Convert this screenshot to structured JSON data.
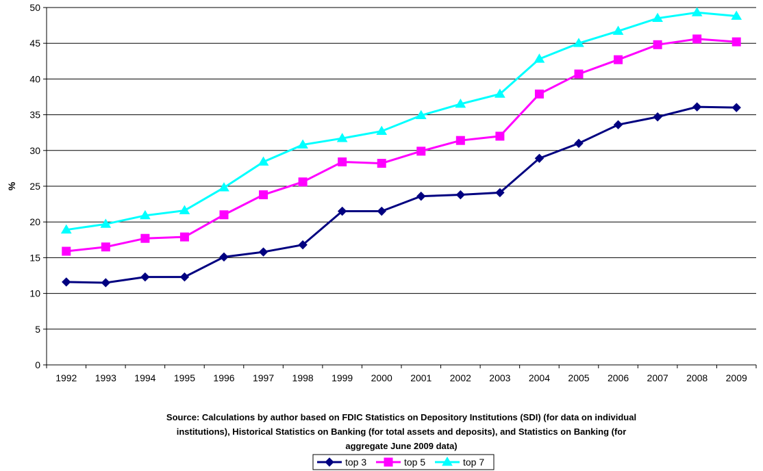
{
  "chart_data": {
    "type": "line",
    "title": "",
    "ylabel": "%",
    "xlabel_lines": [
      "Source: Calculations by author based on FDIC Statistics on Depository Institutions (SDI) (for data on individual",
      "institutions), Historical Statistics on Banking (for total assets and deposits), and Statistics on Banking (for",
      "aggregate June 2009 data)"
    ],
    "categories": [
      "1992",
      "1993",
      "1994",
      "1995",
      "1996",
      "1997",
      "1998",
      "1999",
      "2000",
      "2001",
      "2002",
      "2003",
      "2004",
      "2005",
      "2006",
      "2007",
      "2008",
      "2009"
    ],
    "ylim": [
      0,
      50
    ],
    "yticks": [
      0,
      5,
      10,
      15,
      20,
      25,
      30,
      35,
      40,
      45,
      50
    ],
    "grid": true,
    "legend_position": "bottom-center",
    "series": [
      {
        "name": "top 3",
        "color": "#000080",
        "marker": "diamond",
        "values": [
          11.6,
          11.5,
          12.3,
          12.3,
          15.1,
          15.8,
          16.8,
          21.5,
          21.5,
          23.6,
          23.8,
          24.1,
          28.9,
          31.0,
          33.6,
          34.7,
          36.1,
          36.0
        ]
      },
      {
        "name": "top 5",
        "color": "#FF00FF",
        "marker": "square",
        "values": [
          15.9,
          16.5,
          17.7,
          17.9,
          21.0,
          23.8,
          25.6,
          28.4,
          28.2,
          29.9,
          31.4,
          32.0,
          37.9,
          40.7,
          42.7,
          44.8,
          45.6,
          45.2
        ]
      },
      {
        "name": "top 7",
        "color": "#00FFFF",
        "marker": "triangle",
        "values": [
          18.9,
          19.7,
          20.9,
          21.6,
          24.8,
          28.4,
          30.8,
          31.7,
          32.7,
          34.9,
          36.5,
          37.9,
          42.8,
          45.0,
          46.7,
          48.5,
          49.3,
          48.8
        ]
      }
    ]
  }
}
